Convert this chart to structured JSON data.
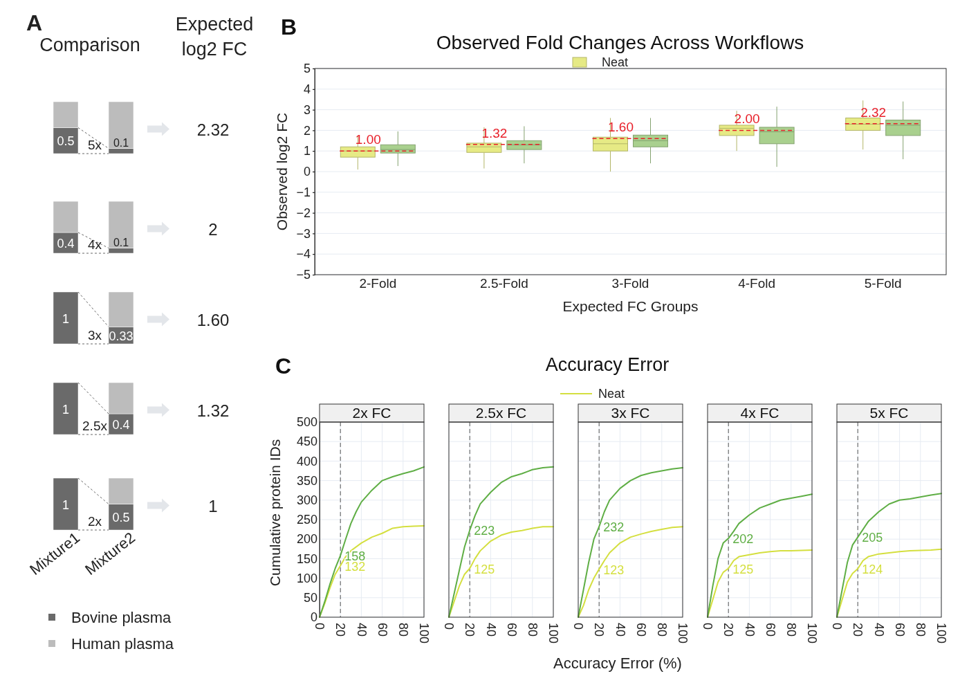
{
  "chart_data": [
    {
      "type": "bar",
      "stacked": true,
      "categories": [
        null,
        null
      ],
      "series": [
        {
          "color": "#6a6a6a",
          "values": [
            0.5,
            0.1
          ],
          "value_labels": [
            "0.5",
            "0.1"
          ]
        },
        {
          "color": "#bcbcbc",
          "values": [
            0.5,
            0.9
          ]
        }
      ],
      "annotations": [
        "A",
        "Comparison",
        "Expected log2 FC",
        "5x",
        "2.32"
      ]
    },
    {
      "type": "bar",
      "stacked": true,
      "categories": [
        null,
        null
      ],
      "series": [
        {
          "color": "#6a6a6a",
          "values": [
            0.4,
            0.1
          ],
          "value_labels": [
            "0.4",
            "0.1"
          ]
        },
        {
          "color": "#bcbcbc",
          "values": [
            0.6,
            0.9
          ]
        }
      ],
      "annotations": [
        "4x",
        "2"
      ]
    },
    {
      "type": "bar",
      "stacked": true,
      "categories": [
        null,
        null
      ],
      "series": [
        {
          "color": "#6a6a6a",
          "values": [
            1,
            0.33
          ],
          "value_labels": [
            "1",
            "0.33"
          ]
        },
        {
          "color": "#bcbcbc",
          "values": [
            0,
            0.67
          ]
        }
      ],
      "annotations": [
        "3x",
        "1.60"
      ]
    },
    {
      "type": "bar",
      "stacked": true,
      "categories": [
        null,
        null
      ],
      "series": [
        {
          "color": "#6a6a6a",
          "values": [
            1,
            0.4
          ],
          "value_labels": [
            "1",
            "0.4"
          ]
        },
        {
          "color": "#bcbcbc",
          "values": [
            0,
            0.6
          ]
        }
      ],
      "annotations": [
        "2.5x",
        "1.32"
      ]
    },
    {
      "type": "bar",
      "stacked": true,
      "categories": [
        "Mixture1",
        "Mixture2"
      ],
      "legend": "bottom",
      "series": [
        {
          "name": "Bovine plasma",
          "color": "#6a6a6a",
          "values": [
            1,
            0.5
          ],
          "value_labels": [
            "1",
            "0.5"
          ]
        },
        {
          "name": "Human plasma",
          "color": "#bcbcbc",
          "values": [
            0,
            0.5
          ]
        }
      ],
      "annotations": [
        "2x",
        "1"
      ]
    },
    {
      "type": "box",
      "title": "Observed Fold Changes Across Workflows",
      "xlabel": "Expected FC Groups",
      "ylabel": "Observed log2 FC",
      "legend": "top",
      "grid": "y",
      "categories": [
        "2-Fold",
        "2.5-Fold",
        "3-Fold",
        "4-Fold",
        "5-Fold"
      ],
      "ylim": [
        -5,
        5
      ],
      "yticks": [
        {
          "value": -5,
          "label": "−5"
        },
        {
          "value": -4,
          "label": "−4"
        },
        {
          "value": -3,
          "label": "−3"
        },
        {
          "value": -2,
          "label": "−2"
        },
        {
          "value": -1,
          "label": "−1"
        },
        0,
        1,
        2,
        3,
        4,
        5
      ],
      "series": [
        {
          "name": "Neat",
          "color": "#e6ea85",
          "boxes": [
            {
              "low": 0.1,
              "q1": 0.7,
              "median": 1.0,
              "q3": 1.2,
              "high": 1.75
            },
            {
              "low": 0.15,
              "q1": 0.93,
              "median": 1.2,
              "q3": 1.38,
              "high": 2.15
            },
            {
              "low": 0.0,
              "q1": 1.0,
              "median": 1.35,
              "q3": 1.67,
              "high": 2.6
            },
            {
              "low": 1.0,
              "q1": 1.75,
              "median": 2.1,
              "q3": 2.25,
              "high": 2.95
            },
            {
              "low": 1.07,
              "q1": 2.0,
              "median": 2.3,
              "q3": 2.6,
              "high": 3.45
            }
          ]
        },
        {
          "color": "#a9d08e",
          "boxes": [
            {
              "low": 0.27,
              "q1": 0.9,
              "median": 1.07,
              "q3": 1.3,
              "high": 1.95
            },
            {
              "low": 0.4,
              "q1": 1.07,
              "median": 1.3,
              "q3": 1.5,
              "high": 2.2
            },
            {
              "low": 0.4,
              "q1": 1.2,
              "median": 1.5,
              "q3": 1.77,
              "high": 2.6
            },
            {
              "low": 0.23,
              "q1": 1.35,
              "median": 1.93,
              "q3": 2.15,
              "high": 3.15
            },
            {
              "low": 0.6,
              "q1": 1.75,
              "median": 2.25,
              "q3": 2.5,
              "high": 3.4
            }
          ]
        }
      ],
      "annotations": [
        "B",
        {
          "text": "1.00",
          "x": "2-Fold",
          "y": 1.0
        },
        {
          "text": "1.32",
          "x": "2.5-Fold",
          "y": 1.32
        },
        {
          "text": "1.60",
          "x": "3-Fold",
          "y": 1.6
        },
        {
          "text": "2.00",
          "x": "4-Fold",
          "y": 2.0
        },
        {
          "text": "2.32",
          "x": "5-Fold",
          "y": 2.32
        }
      ]
    },
    {
      "type": "line",
      "title": "2x FC",
      "ylabel": "Cumulative protein IDs",
      "grid": true,
      "xlim": [
        0,
        100
      ],
      "xticks": [
        0,
        20,
        40,
        60,
        80,
        100
      ],
      "ylim": [
        0,
        500
      ],
      "yticks": [
        0,
        50,
        100,
        150,
        200,
        250,
        300,
        350,
        400,
        450,
        500
      ],
      "ref_lines": [
        {
          "axis": "x",
          "value": 20,
          "color": "#555555",
          "line_style": "dashed"
        }
      ],
      "series": [
        {
          "color": "#d4df3f",
          "x": [
            0,
            5,
            10,
            15,
            20,
            25,
            30,
            40,
            50,
            60,
            70,
            80,
            90,
            100
          ],
          "values": [
            0,
            35,
            75,
            110,
            132,
            155,
            170,
            190,
            205,
            215,
            228,
            232,
            233,
            234
          ]
        },
        {
          "color": "#5fae45",
          "x": [
            0,
            5,
            10,
            15,
            20,
            25,
            30,
            35,
            40,
            45,
            50,
            60,
            70,
            80,
            90,
            100
          ],
          "values": [
            0,
            40,
            85,
            125,
            158,
            200,
            240,
            270,
            295,
            310,
            325,
            350,
            360,
            368,
            375,
            385
          ]
        }
      ],
      "annotations": [
        "C",
        {
          "text": "132",
          "x": 20,
          "y": 132
        },
        {
          "text": "158",
          "x": 20,
          "y": 158
        }
      ]
    },
    {
      "type": "line",
      "title": "2.5x FC",
      "grid": true,
      "tick_labels": "x",
      "xlim": [
        0,
        100
      ],
      "xticks": [
        0,
        20,
        40,
        60,
        80,
        100
      ],
      "ylim": [
        0,
        500
      ],
      "yticks": [
        0,
        50,
        100,
        150,
        200,
        250,
        300,
        350,
        400,
        450,
        500
      ],
      "ref_lines": [
        {
          "axis": "x",
          "value": 20,
          "color": "#555555",
          "line_style": "dashed"
        }
      ],
      "series": [
        {
          "color": "#d4df3f",
          "x": [
            0,
            5,
            10,
            15,
            20,
            25,
            30,
            40,
            50,
            60,
            70,
            80,
            90,
            100
          ],
          "values": [
            0,
            40,
            80,
            110,
            125,
            150,
            170,
            195,
            210,
            218,
            222,
            228,
            232,
            232
          ]
        },
        {
          "color": "#5fae45",
          "x": [
            0,
            5,
            10,
            15,
            20,
            25,
            30,
            40,
            50,
            60,
            70,
            80,
            90,
            100
          ],
          "values": [
            0,
            60,
            120,
            180,
            223,
            260,
            290,
            320,
            345,
            360,
            368,
            378,
            383,
            385
          ]
        }
      ],
      "annotations": [
        {
          "text": "125",
          "x": 20,
          "y": 125
        },
        {
          "text": "223",
          "x": 20,
          "y": 223
        }
      ]
    },
    {
      "type": "line",
      "title": "3x FC",
      "xlabel": "Accuracy Error (%)",
      "legend": "top",
      "grid": true,
      "tick_labels": "x",
      "xlim": [
        0,
        100
      ],
      "xticks": [
        0,
        20,
        40,
        60,
        80,
        100
      ],
      "ylim": [
        0,
        500
      ],
      "yticks": [
        0,
        50,
        100,
        150,
        200,
        250,
        300,
        350,
        400,
        450,
        500
      ],
      "ref_lines": [
        {
          "axis": "x",
          "value": 20,
          "color": "#555555",
          "line_style": "dashed"
        }
      ],
      "series": [
        {
          "name": "Neat",
          "color": "#d4df3f",
          "x": [
            0,
            5,
            10,
            15,
            20,
            25,
            30,
            40,
            50,
            60,
            70,
            80,
            90,
            100
          ],
          "values": [
            0,
            30,
            70,
            100,
            123,
            145,
            165,
            190,
            205,
            213,
            220,
            225,
            230,
            232
          ]
        },
        {
          "color": "#5fae45",
          "x": [
            0,
            5,
            10,
            15,
            20,
            25,
            30,
            40,
            50,
            60,
            70,
            80,
            90,
            100
          ],
          "values": [
            0,
            70,
            140,
            200,
            232,
            270,
            300,
            330,
            350,
            363,
            370,
            375,
            380,
            383
          ]
        }
      ],
      "annotations": [
        "Accuracy Error",
        {
          "text": "123",
          "x": 20,
          "y": 123
        },
        {
          "text": "232",
          "x": 20,
          "y": 232
        }
      ]
    },
    {
      "type": "line",
      "title": "4x FC",
      "grid": true,
      "tick_labels": "x",
      "xlim": [
        0,
        100
      ],
      "xticks": [
        0,
        20,
        40,
        60,
        80,
        100
      ],
      "ylim": [
        0,
        500
      ],
      "yticks": [
        0,
        50,
        100,
        150,
        200,
        250,
        300,
        350,
        400,
        450,
        500
      ],
      "ref_lines": [
        {
          "axis": "x",
          "value": 20,
          "color": "#555555",
          "line_style": "dashed"
        }
      ],
      "series": [
        {
          "color": "#d4df3f",
          "x": [
            0,
            5,
            10,
            15,
            20,
            25,
            30,
            40,
            50,
            60,
            70,
            80,
            90,
            100
          ],
          "values": [
            0,
            45,
            90,
            115,
            125,
            145,
            155,
            160,
            165,
            168,
            170,
            170,
            171,
            172
          ]
        },
        {
          "color": "#5fae45",
          "x": [
            0,
            5,
            10,
            15,
            20,
            25,
            30,
            40,
            50,
            60,
            70,
            80,
            90,
            100
          ],
          "values": [
            0,
            80,
            150,
            190,
            202,
            220,
            240,
            262,
            280,
            290,
            300,
            305,
            310,
            315
          ]
        }
      ],
      "annotations": [
        {
          "text": "125",
          "x": 20,
          "y": 125
        },
        {
          "text": "202",
          "x": 20,
          "y": 202
        }
      ]
    },
    {
      "type": "line",
      "title": "5x FC",
      "grid": true,
      "tick_labels": "x",
      "xlim": [
        0,
        100
      ],
      "xticks": [
        0,
        20,
        40,
        60,
        80,
        100
      ],
      "ylim": [
        0,
        500
      ],
      "yticks": [
        0,
        50,
        100,
        150,
        200,
        250,
        300,
        350,
        400,
        450,
        500
      ],
      "ref_lines": [
        {
          "axis": "x",
          "value": 20,
          "color": "#555555",
          "line_style": "dashed"
        }
      ],
      "series": [
        {
          "color": "#d4df3f",
          "x": [
            0,
            5,
            10,
            15,
            20,
            25,
            30,
            40,
            50,
            60,
            70,
            80,
            90,
            100
          ],
          "values": [
            0,
            45,
            90,
            112,
            124,
            145,
            155,
            162,
            165,
            168,
            170,
            171,
            172,
            174
          ]
        },
        {
          "color": "#5fae45",
          "x": [
            0,
            5,
            10,
            15,
            20,
            25,
            30,
            40,
            50,
            60,
            70,
            80,
            90,
            100
          ],
          "values": [
            0,
            70,
            140,
            185,
            205,
            225,
            245,
            270,
            290,
            300,
            303,
            308,
            313,
            317
          ]
        }
      ],
      "annotations": [
        {
          "text": "124",
          "x": 20,
          "y": 124
        },
        {
          "text": "205",
          "x": 20,
          "y": 205
        }
      ]
    }
  ]
}
